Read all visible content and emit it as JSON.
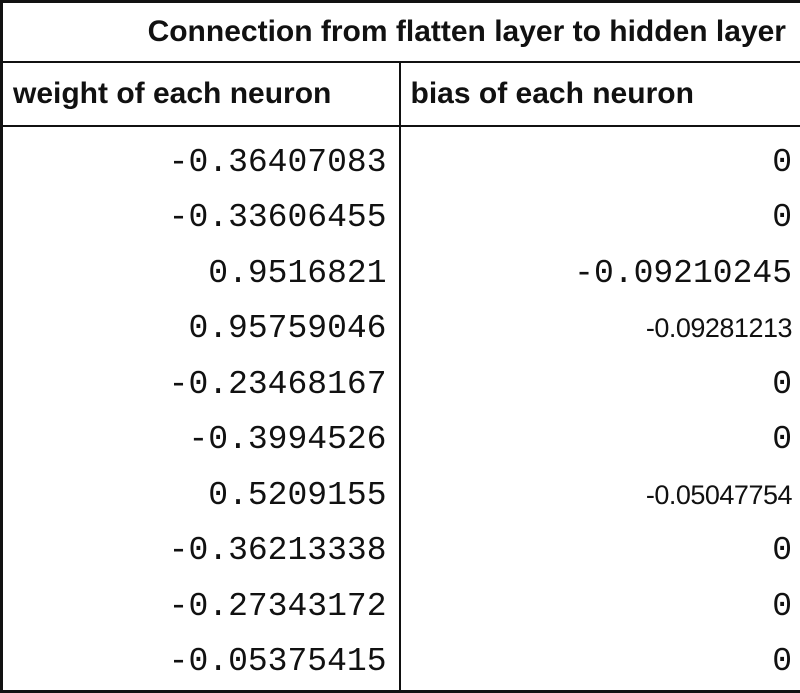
{
  "table": {
    "title": "Connection from flatten layer to hidden layer",
    "headers": {
      "weight": "weight of each neuron",
      "bias": "bias of each neuron"
    },
    "rows": [
      {
        "weight": "-0.36407083",
        "bias": "0",
        "bias_font": "mono"
      },
      {
        "weight": "-0.33606455",
        "bias": "0",
        "bias_font": "mono"
      },
      {
        "weight": "0.9516821",
        "bias": "-0.09210245",
        "bias_font": "mono"
      },
      {
        "weight": "0.95759046",
        "bias": "-0.09281213",
        "bias_font": "sans"
      },
      {
        "weight": "-0.23468167",
        "bias": "0",
        "bias_font": "mono"
      },
      {
        "weight": "-0.3994526",
        "bias": "0",
        "bias_font": "mono"
      },
      {
        "weight": "0.5209155",
        "bias": "-0.05047754",
        "bias_font": "sans"
      },
      {
        "weight": "-0.36213338",
        "bias": "0",
        "bias_font": "mono"
      },
      {
        "weight": "-0.27343172",
        "bias": "0",
        "bias_font": "mono"
      },
      {
        "weight": "-0.05375415",
        "bias": "0",
        "bias_font": "mono"
      }
    ]
  }
}
